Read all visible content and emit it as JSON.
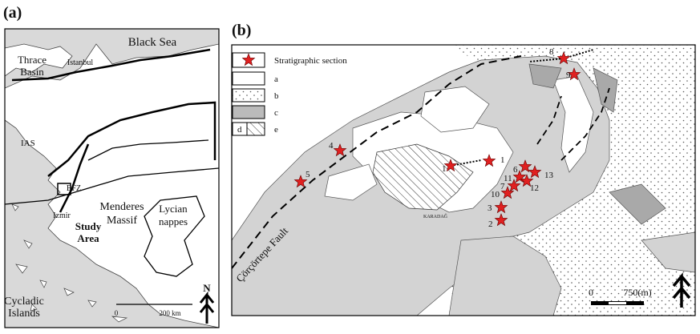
{
  "panel_a": {
    "label": "(a)",
    "places": [
      [
        "Black Sea"
      ],
      [
        "Thrace",
        "Basin"
      ],
      [
        "Istanbul"
      ],
      [
        "IAS"
      ],
      [
        "BFZ"
      ],
      [
        "Izmir"
      ],
      [
        "Menderes",
        "Massif"
      ],
      [
        "Study",
        "Area"
      ],
      [
        "Lycian",
        "nappes"
      ],
      [
        "Cycladic",
        "Islands"
      ]
    ],
    "scale": [
      "0",
      "200 km"
    ],
    "north": "N"
  },
  "panel_b": {
    "label": "(b)",
    "legend": [
      "Stratigraphic section",
      "a",
      "b",
      "c",
      "d",
      "e"
    ],
    "fault": "Çörçörtepe Fault",
    "place": "KARADAĞ",
    "sections": [
      "8",
      "9",
      "1",
      "1",
      "4",
      "5",
      "6",
      "13",
      "11",
      "12",
      "7",
      "10",
      "3",
      "2"
    ],
    "scale": [
      "0",
      "750(m)"
    ]
  }
}
